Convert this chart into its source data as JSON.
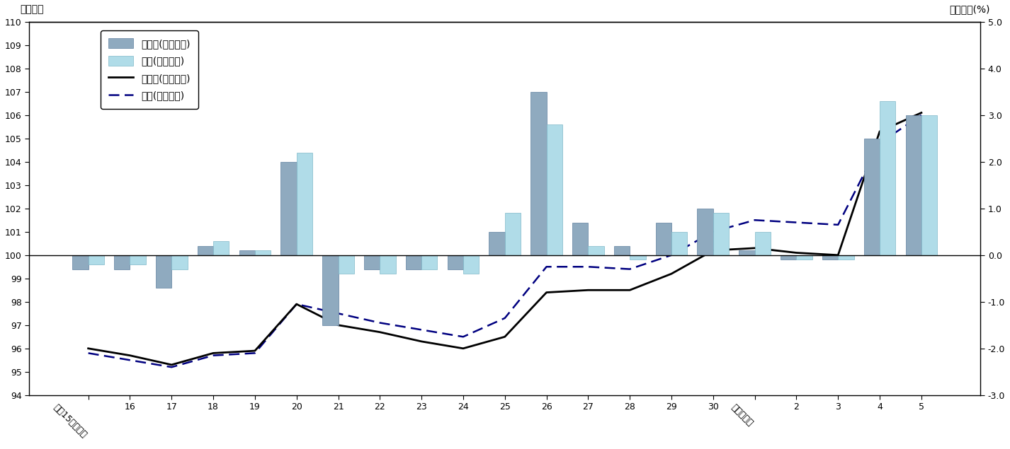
{
  "x_labels": [
    "平成15年度平均",
    "16",
    "17",
    "18",
    "19",
    "20",
    "21",
    "22",
    "23",
    "24",
    "25",
    "26",
    "27",
    "28",
    "29",
    "30",
    "令和元年度",
    "2",
    "3",
    "4",
    "5"
  ],
  "takamatsu_yoy": [
    -0.3,
    -0.3,
    -0.7,
    0.2,
    0.1,
    2.0,
    -1.5,
    -0.3,
    -0.3,
    -0.3,
    0.5,
    3.5,
    0.7,
    0.2,
    0.7,
    1.0,
    0.1,
    -0.1,
    -0.1,
    2.5,
    3.0
  ],
  "zenkoku_yoy": [
    -0.2,
    -0.2,
    -0.3,
    0.3,
    0.1,
    2.2,
    -0.4,
    -0.4,
    -0.3,
    -0.4,
    0.9,
    2.8,
    0.2,
    -0.1,
    0.5,
    0.9,
    0.5,
    -0.1,
    -0.1,
    3.3,
    3.0
  ],
  "takamatsu_index": [
    96.0,
    95.7,
    95.3,
    95.8,
    95.9,
    97.9,
    97.0,
    96.7,
    96.3,
    96.0,
    96.5,
    98.4,
    98.5,
    98.5,
    99.2,
    100.2,
    100.3,
    100.1,
    100.0,
    105.3,
    106.1
  ],
  "zenkoku_index": [
    95.8,
    95.5,
    95.2,
    95.7,
    95.8,
    97.9,
    97.5,
    97.1,
    96.8,
    96.5,
    97.3,
    99.5,
    99.5,
    99.4,
    100.0,
    101.0,
    101.5,
    101.4,
    101.3,
    104.8,
    106.0
  ],
  "bar_color_takamatsu": "#8faabf",
  "bar_color_takamatsu_edge": "#6080a0",
  "bar_color_zenkoku": "#b0dce8",
  "bar_color_zenkoku_edge": "#80b8c8",
  "line_color_takamatsu": "#000000",
  "line_color_zenkoku": "#000080",
  "yleft_min": 94,
  "yleft_max": 110,
  "yright_min": -3.0,
  "yright_max": 5.0,
  "title_left": "総合指数",
  "title_right": "前年度比(%)",
  "legend_labels": [
    "高松市(前年度比)",
    "全国(前年度比)",
    "高松市(総合指数)",
    "全国(総合指数)"
  ],
  "background_color": "#ffffff"
}
